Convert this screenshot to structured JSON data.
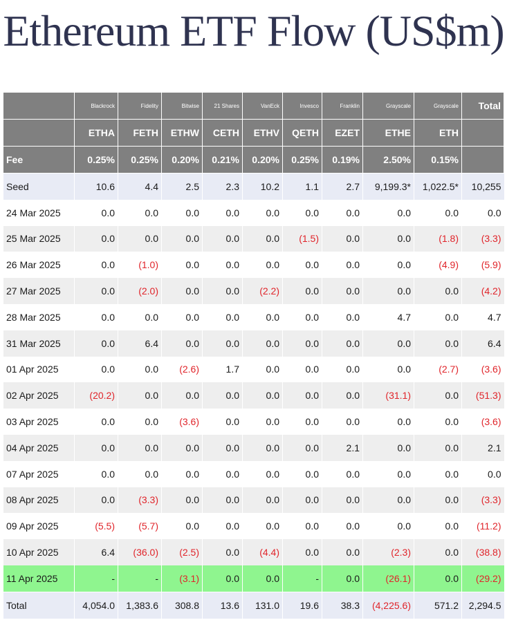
{
  "title": "Ethereum ETF Flow (US$m)",
  "colors": {
    "header_bg": "#808080",
    "negative": "#e0242a",
    "highlight_row": "#8ff58f",
    "seed_total_row": "#e8ebf5"
  },
  "header": {
    "issuers": [
      "Blackrock",
      "Fidelity",
      "Bitwise",
      "21 Shares",
      "VanEck",
      "Invesco",
      "Franklin",
      "Grayscale",
      "Grayscale"
    ],
    "total_label": "Total",
    "tickers": [
      "ETHA",
      "FETH",
      "ETHW",
      "CETH",
      "ETHV",
      "QETH",
      "EZET",
      "ETHE",
      "ETH"
    ],
    "fee_label": "Fee",
    "fees": [
      "0.25%",
      "0.25%",
      "0.20%",
      "0.21%",
      "0.20%",
      "0.25%",
      "0.19%",
      "2.50%",
      "0.15%"
    ]
  },
  "rows": [
    {
      "label": "Seed",
      "cells": [
        "10.6",
        "4.4",
        "2.5",
        "2.3",
        "10.2",
        "1.1",
        "2.7",
        "9,199.3*",
        "1,022.5*",
        "10,255"
      ]
    },
    {
      "label": "24 Mar 2025",
      "cells": [
        "0.0",
        "0.0",
        "0.0",
        "0.0",
        "0.0",
        "0.0",
        "0.0",
        "0.0",
        "0.0",
        "0.0"
      ]
    },
    {
      "label": "25 Mar 2025",
      "cells": [
        "0.0",
        "0.0",
        "0.0",
        "0.0",
        "0.0",
        "(1.5)",
        "0.0",
        "0.0",
        "(1.8)",
        "(3.3)"
      ]
    },
    {
      "label": "26 Mar 2025",
      "cells": [
        "0.0",
        "(1.0)",
        "0.0",
        "0.0",
        "0.0",
        "0.0",
        "0.0",
        "0.0",
        "(4.9)",
        "(5.9)"
      ]
    },
    {
      "label": "27 Mar 2025",
      "cells": [
        "0.0",
        "(2.0)",
        "0.0",
        "0.0",
        "(2.2)",
        "0.0",
        "0.0",
        "0.0",
        "0.0",
        "(4.2)"
      ]
    },
    {
      "label": "28 Mar 2025",
      "cells": [
        "0.0",
        "0.0",
        "0.0",
        "0.0",
        "0.0",
        "0.0",
        "0.0",
        "4.7",
        "0.0",
        "4.7"
      ]
    },
    {
      "label": "31 Mar 2025",
      "cells": [
        "0.0",
        "6.4",
        "0.0",
        "0.0",
        "0.0",
        "0.0",
        "0.0",
        "0.0",
        "0.0",
        "6.4"
      ]
    },
    {
      "label": "01 Apr 2025",
      "cells": [
        "0.0",
        "0.0",
        "(2.6)",
        "1.7",
        "0.0",
        "0.0",
        "0.0",
        "0.0",
        "(2.7)",
        "(3.6)"
      ]
    },
    {
      "label": "02 Apr 2025",
      "cells": [
        "(20.2)",
        "0.0",
        "0.0",
        "0.0",
        "0.0",
        "0.0",
        "0.0",
        "(31.1)",
        "0.0",
        "(51.3)"
      ]
    },
    {
      "label": "03 Apr 2025",
      "cells": [
        "0.0",
        "0.0",
        "(3.6)",
        "0.0",
        "0.0",
        "0.0",
        "0.0",
        "0.0",
        "0.0",
        "(3.6)"
      ]
    },
    {
      "label": "04 Apr 2025",
      "cells": [
        "0.0",
        "0.0",
        "0.0",
        "0.0",
        "0.0",
        "0.0",
        "2.1",
        "0.0",
        "0.0",
        "2.1"
      ]
    },
    {
      "label": "07 Apr 2025",
      "cells": [
        "0.0",
        "0.0",
        "0.0",
        "0.0",
        "0.0",
        "0.0",
        "0.0",
        "0.0",
        "0.0",
        "0.0"
      ]
    },
    {
      "label": "08 Apr 2025",
      "cells": [
        "0.0",
        "(3.3)",
        "0.0",
        "0.0",
        "0.0",
        "0.0",
        "0.0",
        "0.0",
        "0.0",
        "(3.3)"
      ]
    },
    {
      "label": "09 Apr 2025",
      "cells": [
        "(5.5)",
        "(5.7)",
        "0.0",
        "0.0",
        "0.0",
        "0.0",
        "0.0",
        "0.0",
        "0.0",
        "(11.2)"
      ]
    },
    {
      "label": "10 Apr 2025",
      "cells": [
        "6.4",
        "(36.0)",
        "(2.5)",
        "0.0",
        "(4.4)",
        "0.0",
        "0.0",
        "(2.3)",
        "0.0",
        "(38.8)"
      ]
    },
    {
      "label": "11 Apr 2025",
      "cells": [
        "-",
        "-",
        "(3.1)",
        "0.0",
        "0.0",
        "-",
        "0.0",
        "(26.1)",
        "0.0",
        "(29.2)"
      ]
    },
    {
      "label": "Total",
      "cells": [
        "4,054.0",
        "1,383.6",
        "308.8",
        "13.6",
        "131.0",
        "19.6",
        "38.3",
        "(4,225.6)",
        "571.2",
        "2,294.5"
      ]
    }
  ]
}
